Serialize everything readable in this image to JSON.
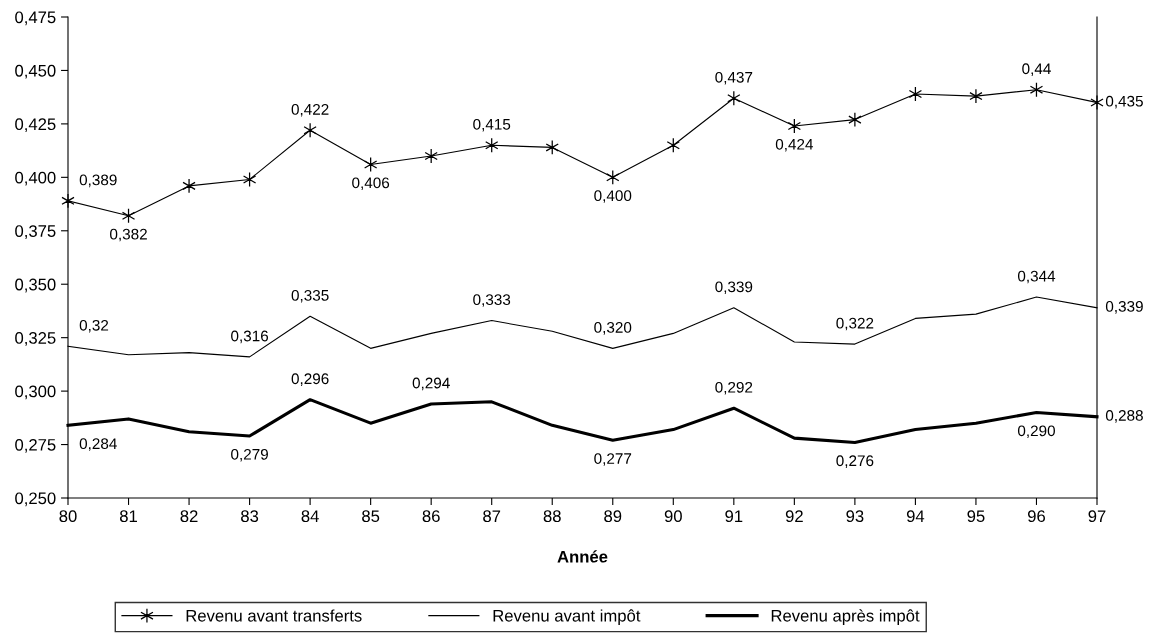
{
  "chart_data": {
    "type": "line",
    "xlabel": "Année",
    "categories": [
      "80",
      "81",
      "82",
      "83",
      "84",
      "85",
      "86",
      "87",
      "88",
      "89",
      "90",
      "91",
      "92",
      "93",
      "94",
      "95",
      "96",
      "97"
    ],
    "series": [
      {
        "name": "Revenu avant transferts",
        "color": "#000000",
        "marker": "cross",
        "values": [
          0.389,
          0.382,
          0.396,
          0.399,
          0.422,
          0.406,
          0.41,
          0.415,
          0.414,
          0.4,
          0.415,
          0.437,
          0.424,
          0.427,
          0.439,
          0.438,
          0.441,
          0.435
        ],
        "value_labels": [
          "0,389",
          "0,382",
          null,
          null,
          "0,422",
          "0,406",
          null,
          "0,415",
          null,
          "0,400",
          null,
          "0,437",
          "0,424",
          null,
          null,
          null,
          "0,44",
          "0,435"
        ]
      },
      {
        "name": "Revenu avant impôt",
        "color": "#000000",
        "marker": "none",
        "values": [
          0.321,
          0.317,
          0.318,
          0.316,
          0.335,
          0.32,
          0.327,
          0.333,
          0.328,
          0.32,
          0.327,
          0.339,
          0.323,
          0.322,
          0.334,
          0.336,
          0.344,
          0.339
        ],
        "value_labels": [
          "0,32",
          null,
          null,
          "0,316",
          "0,335",
          null,
          null,
          "0,333",
          null,
          "0,320",
          null,
          "0,339",
          null,
          "0,322",
          null,
          null,
          "0,344",
          "0,339"
        ]
      },
      {
        "name": "Revenu après impôt",
        "color": "#000000",
        "marker": "none",
        "values": [
          0.284,
          0.287,
          0.281,
          0.279,
          0.296,
          0.285,
          0.294,
          0.295,
          0.284,
          0.277,
          0.282,
          0.292,
          0.278,
          0.276,
          0.282,
          0.285,
          0.29,
          0.288
        ],
        "value_labels": [
          "0,284",
          null,
          null,
          "0,279",
          "0,296",
          null,
          "0,294",
          null,
          null,
          "0,277",
          null,
          "0,292",
          null,
          "0,276",
          null,
          null,
          "0,290",
          "0,288"
        ]
      }
    ],
    "ylim": [
      0.25,
      0.475
    ],
    "yticks": [
      {
        "value": 0.25,
        "label": "0,250"
      },
      {
        "value": 0.275,
        "label": "0,275"
      },
      {
        "value": 0.3,
        "label": "0,300"
      },
      {
        "value": 0.325,
        "label": "0,325"
      },
      {
        "value": 0.35,
        "label": "0,350"
      },
      {
        "value": 0.375,
        "label": "0,375"
      },
      {
        "value": 0.4,
        "label": "0,400"
      },
      {
        "value": 0.425,
        "label": "0,425"
      },
      {
        "value": 0.45,
        "label": "0,450"
      },
      {
        "value": 0.475,
        "label": "0,475"
      }
    ],
    "grid": false,
    "legend": "bottom"
  }
}
